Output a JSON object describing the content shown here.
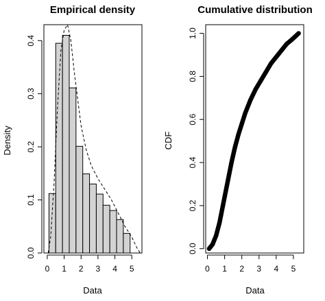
{
  "chart_data": [
    {
      "type": "bar",
      "title": "Empirical density",
      "xlabel": "Data",
      "ylabel": "Density",
      "xlim": [
        -0.2,
        5.6
      ],
      "ylim": [
        0,
        0.43
      ],
      "x_ticks": [
        0,
        1,
        2,
        3,
        4,
        5
      ],
      "y_ticks": [
        0.0,
        0.1,
        0.2,
        0.3,
        0.4
      ],
      "x_tick_labels": [
        "0",
        "1",
        "2",
        "3",
        "4",
        "5"
      ],
      "y_tick_labels": [
        "0.0",
        "0.1",
        "0.2",
        "0.3",
        "0.4"
      ],
      "bin_edges": [
        0.1,
        0.5,
        0.9,
        1.3,
        1.7,
        2.1,
        2.5,
        2.9,
        3.3,
        3.7,
        4.1,
        4.5,
        4.9,
        5.3
      ],
      "values": [
        0.112,
        0.395,
        0.41,
        0.311,
        0.201,
        0.149,
        0.13,
        0.111,
        0.09,
        0.08,
        0.063,
        0.037,
        0.0
      ],
      "bar_fill": "#d3d3d3",
      "density_curve": {
        "style": "dashed",
        "x": [
          0.05,
          0.2,
          0.4,
          0.6,
          0.8,
          1.0,
          1.2,
          1.4,
          1.6,
          1.8,
          2.0,
          2.3,
          2.6,
          3.0,
          3.4,
          3.8,
          4.2,
          4.6,
          5.0,
          5.3,
          5.5
        ],
        "y": [
          0.0,
          0.03,
          0.13,
          0.27,
          0.38,
          0.42,
          0.43,
          0.4,
          0.34,
          0.29,
          0.24,
          0.195,
          0.165,
          0.14,
          0.12,
          0.1,
          0.075,
          0.05,
          0.03,
          0.01,
          0.0
        ]
      }
    },
    {
      "type": "scatter",
      "title": "Cumulative distribution",
      "xlabel": "Data",
      "ylabel": "CDF",
      "xlim": [
        -0.1,
        5.6
      ],
      "ylim": [
        -0.02,
        1.04
      ],
      "x_ticks": [
        0,
        1,
        2,
        3,
        4,
        5
      ],
      "y_ticks": [
        0.0,
        0.2,
        0.4,
        0.6,
        0.8,
        1.0
      ],
      "x_tick_labels": [
        "0",
        "1",
        "2",
        "3",
        "4",
        "5"
      ],
      "y_tick_labels": [
        "0.0",
        "0.2",
        "0.4",
        "0.6",
        "0.8",
        "1.0"
      ],
      "marker": "filled-circle",
      "x": [
        0.1,
        0.2,
        0.3,
        0.4,
        0.5,
        0.6,
        0.7,
        0.8,
        0.9,
        1.0,
        1.2,
        1.4,
        1.6,
        1.8,
        2.0,
        2.2,
        2.5,
        2.8,
        3.1,
        3.4,
        3.7,
        4.0,
        4.3,
        4.6,
        4.9,
        5.1,
        5.3
      ],
      "y": [
        0.0,
        0.01,
        0.02,
        0.04,
        0.06,
        0.09,
        0.12,
        0.16,
        0.2,
        0.24,
        0.32,
        0.4,
        0.47,
        0.53,
        0.58,
        0.63,
        0.69,
        0.74,
        0.78,
        0.82,
        0.86,
        0.89,
        0.92,
        0.95,
        0.97,
        0.985,
        1.0
      ]
    }
  ]
}
